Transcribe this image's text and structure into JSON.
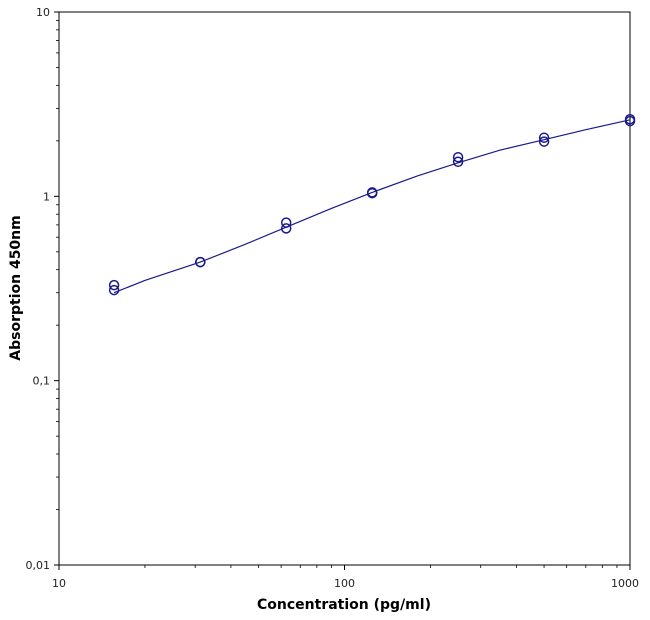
{
  "chart_data": {
    "type": "scatter",
    "title": "",
    "xlabel": "Concentration (pg/ml)",
    "ylabel": "Absorption 450nm",
    "x_scale": "log",
    "y_scale": "log",
    "xlim": [
      10,
      1000
    ],
    "ylim": [
      0.01,
      10
    ],
    "x_ticks": [
      10,
      100,
      1000
    ],
    "x_tick_labels": [
      "10",
      "100",
      "1000"
    ],
    "y_ticks": [
      0.01,
      0.1,
      1,
      10
    ],
    "y_tick_labels": [
      "0,01",
      "0,1",
      "1",
      "10"
    ],
    "grid": false,
    "legend": "none",
    "marker": "open-circle",
    "color": "#1a1a8c",
    "points": [
      {
        "x": 15.6,
        "y": 0.33
      },
      {
        "x": 15.6,
        "y": 0.31
      },
      {
        "x": 31.25,
        "y": 0.44
      },
      {
        "x": 31.25,
        "y": 0.44
      },
      {
        "x": 62.5,
        "y": 0.72
      },
      {
        "x": 62.5,
        "y": 0.67
      },
      {
        "x": 125,
        "y": 1.05
      },
      {
        "x": 125,
        "y": 1.04
      },
      {
        "x": 250,
        "y": 1.63
      },
      {
        "x": 250,
        "y": 1.54
      },
      {
        "x": 500,
        "y": 2.08
      },
      {
        "x": 500,
        "y": 1.98
      },
      {
        "x": 1000,
        "y": 2.62
      },
      {
        "x": 1000,
        "y": 2.56
      }
    ],
    "fit_curve": {
      "x": [
        15.6,
        20,
        31.25,
        45,
        62.5,
        90,
        125,
        180,
        250,
        350,
        500,
        700,
        1000
      ],
      "y": [
        0.3,
        0.35,
        0.44,
        0.55,
        0.68,
        0.86,
        1.05,
        1.29,
        1.52,
        1.78,
        2.03,
        2.3,
        2.6
      ]
    }
  }
}
